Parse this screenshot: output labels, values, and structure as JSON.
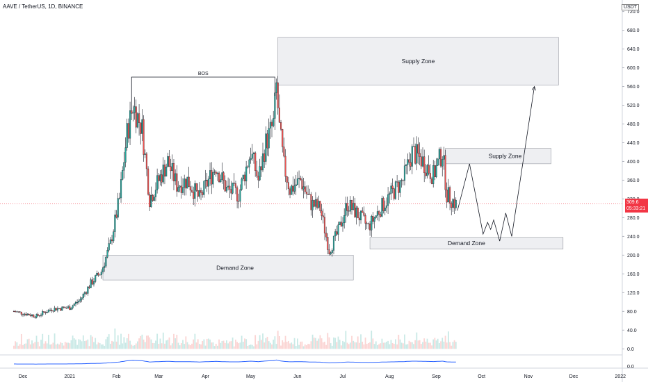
{
  "header": {
    "symbol": "AAVE / TetherUS, 1D, BINANCE",
    "quote_label": "USDT"
  },
  "colors": {
    "up": "#26a69a",
    "down": "#ef5350",
    "zone_fill": "#e8e9ed",
    "zone_stroke": "#9598a1",
    "price_line": "#f23645",
    "ma_line": "#2962ff",
    "path": "#131722"
  },
  "last_price": {
    "value": "309.6",
    "countdown": "05:33:21"
  },
  "annotations": {
    "bos": "BOS",
    "supply_zone_1": "Supply Zone",
    "supply_zone_2": "Supply Zone",
    "demand_zone_1": "Demand Zone",
    "demand_zone_2": "Demand Zone"
  },
  "chart_data": {
    "type": "candlestick",
    "x_ticks": [
      "Dec",
      "2021",
      "Feb",
      "Mar",
      "Apr",
      "May",
      "Jun",
      "Jul",
      "Aug",
      "Sep",
      "Oct",
      "Nov",
      "Dec",
      "2022"
    ],
    "y_ticks": [
      "0.0",
      "40.0",
      "80.0",
      "120.0",
      "160.0",
      "200.0",
      "240.0",
      "280.0",
      "320.0",
      "360.0",
      "400.0",
      "440.0",
      "480.0",
      "520.0",
      "560.0",
      "600.0",
      "640.0",
      "680.0",
      "720.0"
    ],
    "ylim": [
      0,
      725
    ],
    "lower_y_tick": "0.0",
    "close_anchors": [
      [
        "2020-11-25",
        80
      ],
      [
        "2020-12-10",
        70
      ],
      [
        "2020-12-20",
        85
      ],
      [
        "2021-01-01",
        88
      ],
      [
        "2021-01-08",
        105
      ],
      [
        "2021-01-15",
        140
      ],
      [
        "2021-01-22",
        165
      ],
      [
        "2021-01-28",
        225
      ],
      [
        "2021-02-03",
        320
      ],
      [
        "2021-02-08",
        460
      ],
      [
        "2021-02-12",
        520
      ],
      [
        "2021-02-18",
        470
      ],
      [
        "2021-02-23",
        320
      ],
      [
        "2021-03-01",
        360
      ],
      [
        "2021-03-07",
        400
      ],
      [
        "2021-03-13",
        350
      ],
      [
        "2021-03-20",
        360
      ],
      [
        "2021-03-28",
        320
      ],
      [
        "2021-04-03",
        360
      ],
      [
        "2021-04-08",
        390
      ],
      [
        "2021-04-15",
        340
      ],
      [
        "2021-04-23",
        330
      ],
      [
        "2021-05-01",
        420
      ],
      [
        "2021-05-06",
        360
      ],
      [
        "2021-05-11",
        440
      ],
      [
        "2021-05-16",
        480
      ],
      [
        "2021-05-18",
        560
      ],
      [
        "2021-05-20",
        470
      ],
      [
        "2021-05-23",
        390
      ],
      [
        "2021-05-27",
        340
      ],
      [
        "2021-06-03",
        360
      ],
      [
        "2021-06-10",
        310
      ],
      [
        "2021-06-16",
        300
      ],
      [
        "2021-06-22",
        210
      ],
      [
        "2021-06-28",
        250
      ],
      [
        "2021-07-04",
        310
      ],
      [
        "2021-07-10",
        290
      ],
      [
        "2021-07-18",
        260
      ],
      [
        "2021-07-26",
        300
      ],
      [
        "2021-08-02",
        330
      ],
      [
        "2021-08-10",
        360
      ],
      [
        "2021-08-16",
        420
      ],
      [
        "2021-08-22",
        405
      ],
      [
        "2021-08-30",
        370
      ],
      [
        "2021-09-05",
        420
      ],
      [
        "2021-09-08",
        330
      ],
      [
        "2021-09-14",
        309
      ]
    ],
    "projection": [
      [
        "2021-09-15",
        295
      ],
      [
        "2021-09-23",
        395
      ],
      [
        "2021-10-02",
        245
      ],
      [
        "2021-10-05",
        270
      ],
      [
        "2021-10-07",
        255
      ],
      [
        "2021-10-09",
        275
      ],
      [
        "2021-10-13",
        230
      ],
      [
        "2021-10-17",
        290
      ],
      [
        "2021-10-21",
        240
      ],
      [
        "2021-11-05",
        560
      ]
    ],
    "zones": [
      {
        "label": "Supply Zone",
        "x1": "2021-05-19",
        "x2": "2021-11-21",
        "y1": 563,
        "y2": 665
      },
      {
        "label": "Supply Zone",
        "x1": "2021-09-07",
        "x2": "2021-11-16",
        "y1": 395,
        "y2": 428
      },
      {
        "label": "Demand Zone",
        "x1": "2021-07-19",
        "x2": "2021-11-24",
        "y1": 213,
        "y2": 238
      },
      {
        "label": "Demand Zone",
        "x1": "2021-01-23",
        "x2": "2021-07-08",
        "y1": 147,
        "y2": 200
      }
    ],
    "bos": {
      "label": "BOS",
      "x1": "2021-02-11",
      "x2": "2021-05-17",
      "y": 580
    },
    "last_close": 309.6
  }
}
